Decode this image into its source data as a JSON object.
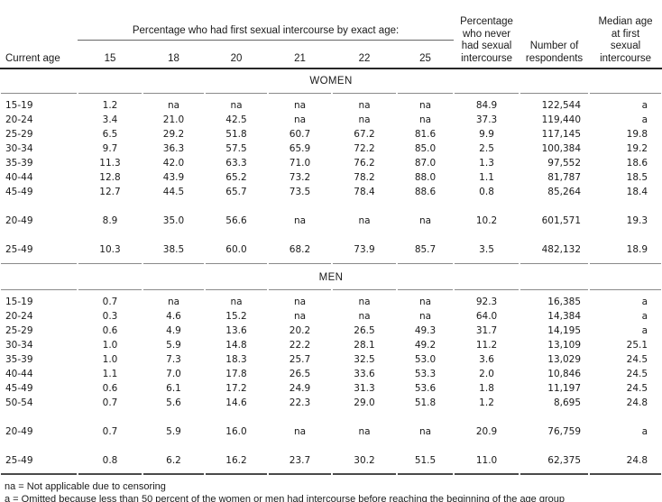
{
  "chart_data": {
    "type": "table",
    "column_group_header": "Percentage who had first sexual intercourse by exact age:",
    "columns": [
      "Current age",
      "15",
      "18",
      "20",
      "21",
      "22",
      "25",
      "Percentage who never had sexual intercourse",
      "Number of respondents",
      "Median age at first sexual intercourse"
    ],
    "header_display": {
      "corner": "Current age",
      "ages": [
        "15",
        "18",
        "20",
        "21",
        "22",
        "25"
      ],
      "never": "Percentage\nwho never\nhad sexual\nintercourse",
      "respondents": "Number of\nrespondents",
      "median": "Median age\nat first\nsexual\nintercourse"
    },
    "sections": [
      {
        "title": "WOMEN",
        "rows": [
          {
            "label": "15-19",
            "values": [
              "1.2",
              "na",
              "na",
              "na",
              "na",
              "na",
              "84.9",
              "122,544",
              "a"
            ]
          },
          {
            "label": "20-24",
            "values": [
              "3.4",
              "21.0",
              "42.5",
              "na",
              "na",
              "na",
              "37.3",
              "119,440",
              "a"
            ]
          },
          {
            "label": "25-29",
            "values": [
              "6.5",
              "29.2",
              "51.8",
              "60.7",
              "67.2",
              "81.6",
              "9.9",
              "117,145",
              "19.8"
            ]
          },
          {
            "label": "30-34",
            "values": [
              "9.7",
              "36.3",
              "57.5",
              "65.9",
              "72.2",
              "85.0",
              "2.5",
              "100,384",
              "19.2"
            ]
          },
          {
            "label": "35-39",
            "values": [
              "11.3",
              "42.0",
              "63.3",
              "71.0",
              "76.2",
              "87.0",
              "1.3",
              "97,552",
              "18.6"
            ]
          },
          {
            "label": "40-44",
            "values": [
              "12.8",
              "43.9",
              "65.2",
              "73.2",
              "78.2",
              "88.0",
              "1.1",
              "81,787",
              "18.5"
            ]
          },
          {
            "label": "45-49",
            "values": [
              "12.7",
              "44.5",
              "65.7",
              "73.5",
              "78.4",
              "88.6",
              "0.8",
              "85,264",
              "18.4"
            ]
          },
          {
            "spacer": true
          },
          {
            "label": "20-49",
            "values": [
              "8.9",
              "35.0",
              "56.6",
              "na",
              "na",
              "na",
              "10.2",
              "601,571",
              "19.3"
            ]
          },
          {
            "spacer": true
          },
          {
            "label": "25-49",
            "values": [
              "10.3",
              "38.5",
              "60.0",
              "68.2",
              "73.9",
              "85.7",
              "3.5",
              "482,132",
              "18.9"
            ]
          }
        ]
      },
      {
        "title": "MEN",
        "rows": [
          {
            "label": "15-19",
            "values": [
              "0.7",
              "na",
              "na",
              "na",
              "na",
              "na",
              "92.3",
              "16,385",
              "a"
            ]
          },
          {
            "label": "20-24",
            "values": [
              "0.3",
              "4.6",
              "15.2",
              "na",
              "na",
              "na",
              "64.0",
              "14,384",
              "a"
            ]
          },
          {
            "label": "25-29",
            "values": [
              "0.6",
              "4.9",
              "13.6",
              "20.2",
              "26.5",
              "49.3",
              "31.7",
              "14,195",
              "a"
            ]
          },
          {
            "label": "30-34",
            "values": [
              "1.0",
              "5.9",
              "14.8",
              "22.2",
              "28.1",
              "49.2",
              "11.2",
              "13,109",
              "25.1"
            ]
          },
          {
            "label": "35-39",
            "values": [
              "1.0",
              "7.3",
              "18.3",
              "25.7",
              "32.5",
              "53.0",
              "3.6",
              "13,029",
              "24.5"
            ]
          },
          {
            "label": "40-44",
            "values": [
              "1.1",
              "7.0",
              "17.8",
              "26.5",
              "33.6",
              "53.3",
              "2.0",
              "10,846",
              "24.5"
            ]
          },
          {
            "label": "45-49",
            "values": [
              "0.6",
              "6.1",
              "17.2",
              "24.9",
              "31.3",
              "53.6",
              "1.8",
              "11,197",
              "24.5"
            ]
          },
          {
            "label": "50-54",
            "values": [
              "0.7",
              "5.6",
              "14.6",
              "22.3",
              "29.0",
              "51.8",
              "1.2",
              "8,695",
              "24.8"
            ]
          },
          {
            "spacer": true
          },
          {
            "label": "20-49",
            "values": [
              "0.7",
              "5.9",
              "16.0",
              "na",
              "na",
              "na",
              "20.9",
              "76,759",
              "a"
            ]
          },
          {
            "spacer": true
          },
          {
            "label": "25-49",
            "values": [
              "0.8",
              "6.2",
              "16.2",
              "23.7",
              "30.2",
              "51.5",
              "11.0",
              "62,375",
              "24.8"
            ]
          }
        ]
      }
    ],
    "footnotes": [
      "na = Not applicable due to censoring",
      "a = Omitted because less than 50 percent of the women or men had intercourse before reaching the beginning of the age group"
    ]
  }
}
